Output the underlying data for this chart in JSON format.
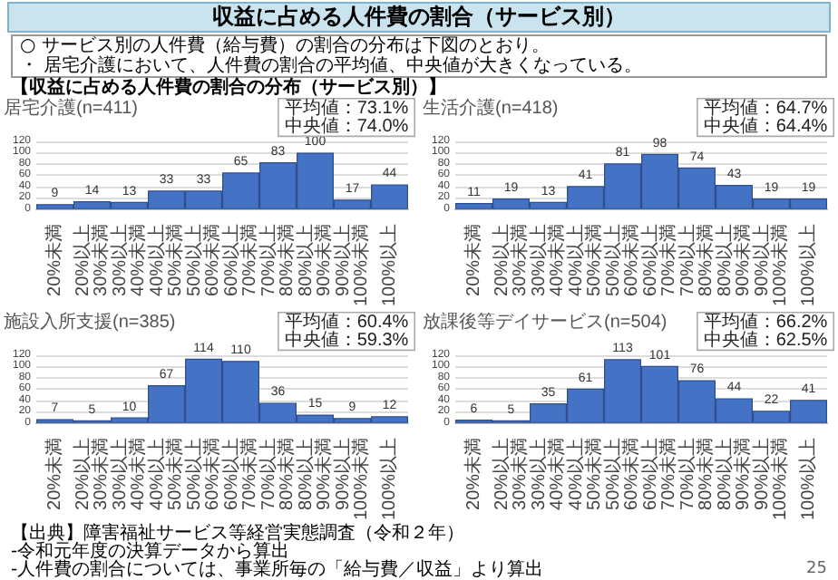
{
  "chart_data": [
    {
      "type": "other",
      "title": "収益に占める人件費の割合（サービス別）",
      "annotations": [
        "○ サービス別の人件費（給与費）の割合の分布は下図のとおり。",
        "・ 居宅介護において、人件費の割合の平均値、中央値が大きくなっている。",
        "【収益に占める人件費の割合の分布（サービス別）】",
        "【出典】障害福祉サービス等経営実態調査（令和２年）",
        "-令和元年度の決算データから算出",
        "-人件費の割合については、事業所毎の「給与費／収益」より算出",
        "25"
      ]
    },
    {
      "type": "bar",
      "title": "居宅介護(n=411)",
      "categories": [
        "20%未満",
        "20%以上\n30%未満",
        "30%以上\n40%未満",
        "40%以上\n50%未満",
        "50%以上\n60%未満",
        "60%以上\n70%未満",
        "70%以上\n80%未満",
        "80%以上\n90%未満",
        "90%以上\n100%未満",
        "100%以上"
      ],
      "values": [
        9,
        14,
        13,
        33,
        33,
        65,
        83,
        100,
        17,
        44
      ],
      "color": "#4472c4",
      "ylim": [
        0,
        120
      ],
      "yticks": [
        0,
        20,
        40,
        60,
        80,
        100,
        120
      ],
      "grid": "y",
      "data_labels": true,
      "annotations": [
        "平均値：73.1%",
        "中央値：74.0%"
      ]
    },
    {
      "type": "bar",
      "title": "生活介護(n=418)",
      "categories": [
        "20%未満",
        "20%以上\n30%未満",
        "30%以上\n40%未満",
        "40%以上\n50%未満",
        "50%以上\n60%未満",
        "60%以上\n70%未満",
        "70%以上\n80%未満",
        "80%以上\n90%未満",
        "90%以上\n100%未満",
        "100%以上"
      ],
      "values": [
        11,
        19,
        13,
        41,
        81,
        98,
        74,
        43,
        19,
        19
      ],
      "color": "#4472c4",
      "ylim": [
        0,
        120
      ],
      "yticks": [
        0,
        20,
        40,
        60,
        80,
        100,
        120
      ],
      "grid": "y",
      "data_labels": true,
      "annotations": [
        "平均値：64.7%",
        "中央値：64.4%"
      ]
    },
    {
      "type": "bar",
      "title": "施設入所支援(n=385)",
      "categories": [
        "20%未満",
        "20%以上\n30%未満",
        "30%以上\n40%未満",
        "40%以上\n50%未満",
        "50%以上\n60%未満",
        "60%以上\n70%未満",
        "70%以上\n80%未満",
        "80%以上\n90%未満",
        "90%以上\n100%未満",
        "100%以上"
      ],
      "values": [
        7,
        5,
        10,
        67,
        114,
        110,
        36,
        15,
        9,
        12
      ],
      "color": "#4472c4",
      "ylim": [
        0,
        120
      ],
      "yticks": [
        0,
        20,
        40,
        60,
        80,
        100,
        120
      ],
      "grid": "y",
      "data_labels": true,
      "annotations": [
        "平均値：60.4%",
        "中央値：59.3%"
      ]
    },
    {
      "type": "bar",
      "title": "放課後等デイサービス(n=504)",
      "categories": [
        "20%未満",
        "20%以上\n30%未満",
        "30%以上\n40%未満",
        "40%以上\n50%未満",
        "50%以上\n60%未満",
        "60%以上\n70%未満",
        "70%以上\n80%未満",
        "80%以上\n90%未満",
        "90%以上\n100%未満",
        "100%以上"
      ],
      "values": [
        6,
        5,
        35,
        61,
        113,
        101,
        76,
        44,
        22,
        41
      ],
      "color": "#4472c4",
      "ylim": [
        0,
        120
      ],
      "yticks": [
        0,
        20,
        40,
        60,
        80,
        100,
        120
      ],
      "grid": "y",
      "data_labels": true,
      "annotations": [
        "平均値：66.2%",
        "中央値：62.5%"
      ]
    }
  ]
}
